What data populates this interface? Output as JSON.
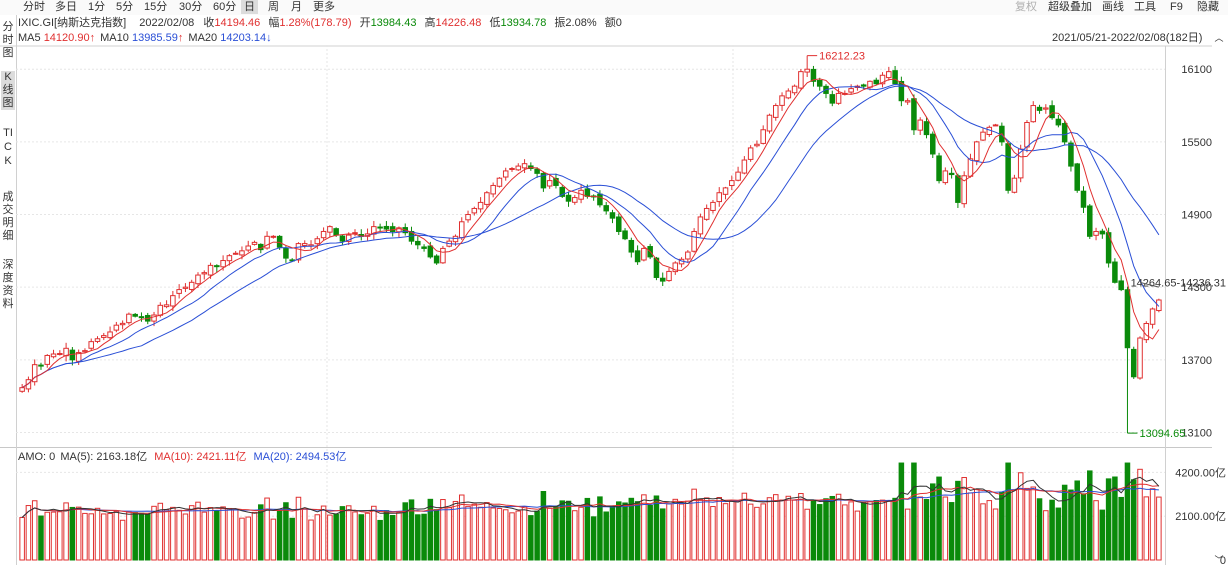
{
  "toolbar": {
    "periods": [
      "分时",
      "多日",
      "1分",
      "5分",
      "15分",
      "30分",
      "60分",
      "日",
      "周",
      "月",
      "更多"
    ],
    "active_period": "日",
    "right_buttons": [
      "复权",
      "超级叠加",
      "画线",
      "工具",
      "F9",
      "隐藏"
    ],
    "muted_button": "复权"
  },
  "sidebar": {
    "items": [
      "分时图",
      "K线图",
      "TICK",
      "成交明细",
      "深度资料"
    ],
    "active": "K线图"
  },
  "header": {
    "symbol": "IXIC.GI[纳斯达克指数]",
    "date": "2022/02/08",
    "close_label": "收",
    "close_value": "14194.46",
    "change_label": "幅",
    "change_value": "1.28%(178.79)",
    "open_label": "开",
    "open_value": "13984.43",
    "high_label": "高",
    "high_value": "14226.48",
    "low_label": "低",
    "low_value": "13934.78",
    "amplitude_label": "振",
    "amplitude_value": "2.08%",
    "amount_label": "额",
    "amount_value": "0"
  },
  "ma_line": {
    "ma5_label": "MA5",
    "ma5_value": "14120.90",
    "ma10_label": "MA10",
    "ma10_value": "13985.59",
    "ma20_label": "MA20",
    "ma20_value": "14203.14"
  },
  "range_text": "2021/05/21-2022/02/08(182日)",
  "volume_header": {
    "amo": "AMO: 0",
    "ma5": "MA(5): 2163.18亿",
    "ma10": "MA(10): 2421.11亿",
    "ma20": "MA(20): 2494.53亿"
  },
  "colors": {
    "up": "#e03030",
    "down": "#0a8a0a",
    "ma5": "#e03030",
    "ma10": "#2a4fd6",
    "ma20": "#2a4fd6",
    "grid": "#e6e6e6",
    "axis_text": "#333333"
  },
  "chart_data": {
    "type": "candlestick",
    "title": "IXIC.GI[纳斯达克指数]",
    "price_axis": {
      "ticks": [
        13100,
        13700,
        14300,
        14900,
        15500,
        16100
      ],
      "ylim": [
        12980,
        16300
      ]
    },
    "volume_axis": {
      "ticks": [
        "0",
        "2100.00亿",
        "4200.00亿"
      ],
      "ylim": [
        0,
        4700
      ],
      "unit": "亿"
    },
    "annotations": {
      "high": {
        "label": "16212.23",
        "value": 16212.23
      },
      "low": {
        "label": "13094.65",
        "value": 13094.65
      },
      "last": {
        "label": "14264.65-14236.31"
      }
    },
    "close": [
      13470,
      13536,
      13660,
      13656,
      13736,
      13748,
      13752,
      13795,
      13700,
      13760,
      13776,
      13850,
      13874,
      13900,
      13930,
      13986,
      14001,
      14077,
      14060,
      14048,
      14020,
      14070,
      14150,
      14154,
      14230,
      14280,
      14300,
      14340,
      14400,
      14420,
      14480,
      14470,
      14520,
      14560,
      14580,
      14600,
      14640,
      14670,
      14610,
      14720,
      14720,
      14630,
      14540,
      14520,
      14660,
      14660,
      14650,
      14700,
      14760,
      14800,
      14730,
      14680,
      14730,
      14750,
      14720,
      14740,
      14800,
      14790,
      14780,
      14760,
      14790,
      14750,
      14680,
      14650,
      14620,
      14550,
      14500,
      14620,
      14680,
      14720,
      14840,
      14900,
      14950,
      15000,
      15080,
      15140,
      15200,
      15260,
      15280,
      15300,
      15320,
      15280,
      15240,
      15120,
      15180,
      15140,
      15050,
      15010,
      15040,
      15100,
      15050,
      15050,
      14980,
      14930,
      14870,
      14760,
      14700,
      14590,
      14510,
      14620,
      14550,
      14380,
      14350,
      14430,
      14500,
      14530,
      14590,
      14760,
      14880,
      14950,
      15000,
      15080,
      15120,
      15180,
      15250,
      15350,
      15450,
      15480,
      15600,
      15720,
      15800,
      15880,
      15920,
      15960,
      16080,
      16100,
      16000,
      15960,
      15900,
      15820,
      15900,
      15900,
      15940,
      15960,
      15960,
      16000,
      15980,
      16050,
      16080,
      15980,
      15840,
      15840,
      15600,
      15680,
      15560,
      15400,
      15180,
      15260,
      15230,
      15000,
      15220,
      15360,
      15500,
      15580,
      15620,
      15640,
      15500,
      15100,
      15200,
      15440,
      15660,
      15800,
      15760,
      15780,
      15700,
      15640,
      15500,
      15300,
      15100,
      14960,
      14720,
      14760,
      14740,
      14500,
      14340,
      14280,
      13800,
      13560,
      13880,
      14000,
      14120,
      14194
    ]
  }
}
